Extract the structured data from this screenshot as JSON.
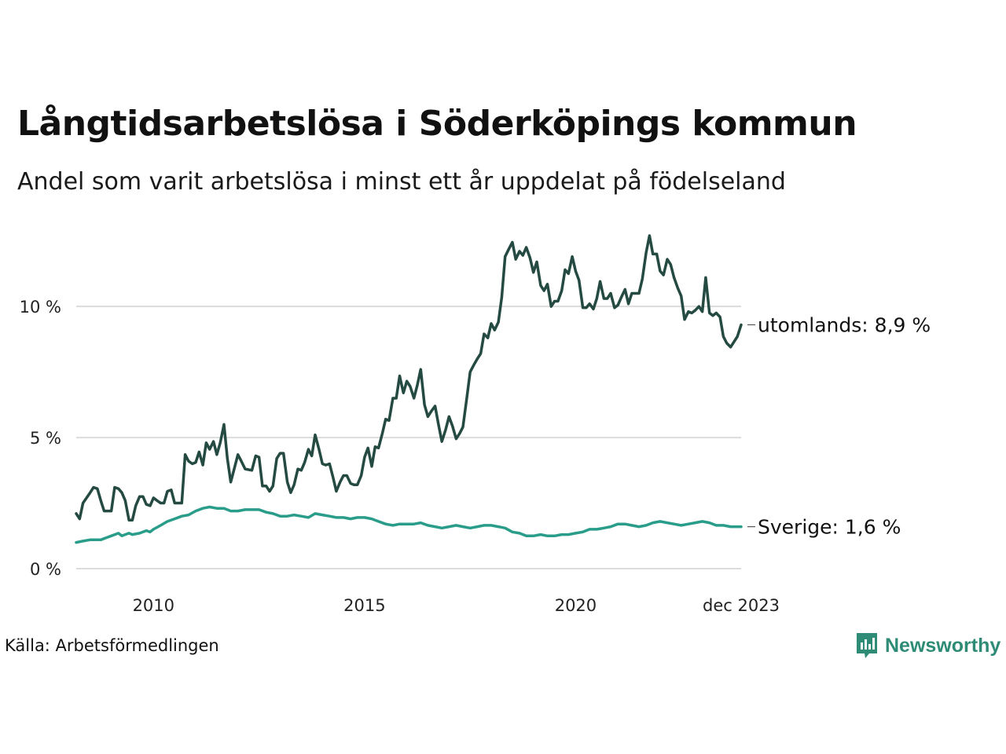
{
  "chart_data": {
    "type": "line",
    "title": "Långtidsarbetslösa i Söderköpings kommun",
    "subtitle": "Andel som varit arbetslösa i minst ett år uppdelat på födelseland",
    "xlabel": "",
    "ylabel": "",
    "x_range": [
      2008.17,
      2023.92
    ],
    "ylim": [
      0,
      13
    ],
    "y_ticks": [
      {
        "value": 0,
        "label": "0 %"
      },
      {
        "value": 5,
        "label": "5 %"
      },
      {
        "value": 10,
        "label": "10 %"
      }
    ],
    "x_ticks": [
      {
        "value": 2010,
        "label": "2010"
      },
      {
        "value": 2015,
        "label": "2015"
      },
      {
        "value": 2020,
        "label": "2020"
      },
      {
        "value": 2023.92,
        "label": "dec 2023"
      }
    ],
    "grid": true,
    "series": [
      {
        "name": "utomlands",
        "end_label": "utomlands: 8,9 %",
        "color": "#244a42",
        "points": [
          [
            2008.17,
            2.1
          ],
          [
            2008.25,
            1.9
          ],
          [
            2008.33,
            2.5
          ],
          [
            2008.5,
            2.9
          ],
          [
            2008.58,
            3.1
          ],
          [
            2008.67,
            3.05
          ],
          [
            2008.75,
            2.6
          ],
          [
            2008.83,
            2.2
          ],
          [
            2009.0,
            2.2
          ],
          [
            2009.08,
            3.1
          ],
          [
            2009.17,
            3.05
          ],
          [
            2009.25,
            2.9
          ],
          [
            2009.33,
            2.6
          ],
          [
            2009.42,
            1.85
          ],
          [
            2009.5,
            1.85
          ],
          [
            2009.58,
            2.4
          ],
          [
            2009.67,
            2.75
          ],
          [
            2009.75,
            2.75
          ],
          [
            2009.83,
            2.45
          ],
          [
            2009.92,
            2.4
          ],
          [
            2010.0,
            2.7
          ],
          [
            2010.08,
            2.6
          ],
          [
            2010.17,
            2.5
          ],
          [
            2010.25,
            2.5
          ],
          [
            2010.33,
            2.95
          ],
          [
            2010.42,
            3.0
          ],
          [
            2010.5,
            2.5
          ],
          [
            2010.67,
            2.5
          ],
          [
            2010.75,
            4.35
          ],
          [
            2010.83,
            4.1
          ],
          [
            2010.92,
            4.0
          ],
          [
            2011.0,
            4.05
          ],
          [
            2011.08,
            4.45
          ],
          [
            2011.17,
            3.95
          ],
          [
            2011.25,
            4.8
          ],
          [
            2011.33,
            4.55
          ],
          [
            2011.42,
            4.85
          ],
          [
            2011.5,
            4.35
          ],
          [
            2011.58,
            4.8
          ],
          [
            2011.67,
            5.5
          ],
          [
            2011.75,
            4.2
          ],
          [
            2011.83,
            3.3
          ],
          [
            2011.92,
            3.85
          ],
          [
            2012.0,
            4.35
          ],
          [
            2012.08,
            4.1
          ],
          [
            2012.17,
            3.8
          ],
          [
            2012.33,
            3.75
          ],
          [
            2012.42,
            4.3
          ],
          [
            2012.5,
            4.25
          ],
          [
            2012.58,
            3.15
          ],
          [
            2012.67,
            3.15
          ],
          [
            2012.75,
            2.95
          ],
          [
            2012.83,
            3.15
          ],
          [
            2012.92,
            4.2
          ],
          [
            2013.0,
            4.4
          ],
          [
            2013.08,
            4.4
          ],
          [
            2013.17,
            3.3
          ],
          [
            2013.25,
            2.9
          ],
          [
            2013.33,
            3.2
          ],
          [
            2013.42,
            3.8
          ],
          [
            2013.5,
            3.75
          ],
          [
            2013.58,
            4.05
          ],
          [
            2013.67,
            4.55
          ],
          [
            2013.75,
            4.3
          ],
          [
            2013.83,
            5.1
          ],
          [
            2013.92,
            4.55
          ],
          [
            2014.0,
            4.0
          ],
          [
            2014.08,
            3.95
          ],
          [
            2014.17,
            4.0
          ],
          [
            2014.25,
            3.5
          ],
          [
            2014.33,
            2.95
          ],
          [
            2014.42,
            3.3
          ],
          [
            2014.5,
            3.55
          ],
          [
            2014.58,
            3.55
          ],
          [
            2014.67,
            3.25
          ],
          [
            2014.75,
            3.2
          ],
          [
            2014.83,
            3.2
          ],
          [
            2014.92,
            3.55
          ],
          [
            2015.0,
            4.25
          ],
          [
            2015.08,
            4.6
          ],
          [
            2015.17,
            3.9
          ],
          [
            2015.25,
            4.65
          ],
          [
            2015.33,
            4.6
          ],
          [
            2015.42,
            5.15
          ],
          [
            2015.5,
            5.7
          ],
          [
            2015.58,
            5.65
          ],
          [
            2015.67,
            6.5
          ],
          [
            2015.75,
            6.5
          ],
          [
            2015.83,
            7.35
          ],
          [
            2015.92,
            6.7
          ],
          [
            2016.0,
            7.15
          ],
          [
            2016.08,
            6.95
          ],
          [
            2016.17,
            6.5
          ],
          [
            2016.25,
            7.0
          ],
          [
            2016.33,
            7.6
          ],
          [
            2016.42,
            6.25
          ],
          [
            2016.5,
            5.8
          ],
          [
            2016.58,
            6.0
          ],
          [
            2016.67,
            6.2
          ],
          [
            2016.75,
            5.5
          ],
          [
            2016.83,
            4.85
          ],
          [
            2016.92,
            5.3
          ],
          [
            2017.0,
            5.8
          ],
          [
            2017.08,
            5.45
          ],
          [
            2017.17,
            4.95
          ],
          [
            2017.25,
            5.15
          ],
          [
            2017.33,
            5.4
          ],
          [
            2017.42,
            6.5
          ],
          [
            2017.5,
            7.5
          ],
          [
            2017.58,
            7.75
          ],
          [
            2017.67,
            8.0
          ],
          [
            2017.75,
            8.2
          ],
          [
            2017.83,
            8.95
          ],
          [
            2017.92,
            8.8
          ],
          [
            2018.0,
            9.35
          ],
          [
            2018.08,
            9.1
          ],
          [
            2018.17,
            9.4
          ],
          [
            2018.25,
            10.35
          ],
          [
            2018.33,
            11.9
          ],
          [
            2018.42,
            12.2
          ],
          [
            2018.5,
            12.45
          ],
          [
            2018.58,
            11.8
          ],
          [
            2018.67,
            12.1
          ],
          [
            2018.75,
            11.95
          ],
          [
            2018.83,
            12.25
          ],
          [
            2018.92,
            11.85
          ],
          [
            2019.0,
            11.3
          ],
          [
            2019.08,
            11.7
          ],
          [
            2019.17,
            10.8
          ],
          [
            2019.25,
            10.6
          ],
          [
            2019.33,
            10.85
          ],
          [
            2019.42,
            10.0
          ],
          [
            2019.5,
            10.2
          ],
          [
            2019.58,
            10.2
          ],
          [
            2019.67,
            10.6
          ],
          [
            2019.75,
            11.4
          ],
          [
            2019.83,
            11.25
          ],
          [
            2019.92,
            11.9
          ],
          [
            2020.0,
            11.35
          ],
          [
            2020.08,
            11.0
          ],
          [
            2020.17,
            9.95
          ],
          [
            2020.25,
            9.95
          ],
          [
            2020.33,
            10.1
          ],
          [
            2020.42,
            9.9
          ],
          [
            2020.5,
            10.3
          ],
          [
            2020.58,
            10.95
          ],
          [
            2020.67,
            10.3
          ],
          [
            2020.75,
            10.3
          ],
          [
            2020.83,
            10.5
          ],
          [
            2020.92,
            9.95
          ],
          [
            2021.0,
            10.05
          ],
          [
            2021.08,
            10.35
          ],
          [
            2021.17,
            10.65
          ],
          [
            2021.25,
            10.1
          ],
          [
            2021.33,
            10.5
          ],
          [
            2021.42,
            10.5
          ],
          [
            2021.5,
            10.5
          ],
          [
            2021.58,
            11.05
          ],
          [
            2021.67,
            12.05
          ],
          [
            2021.75,
            12.7
          ],
          [
            2021.83,
            12.0
          ],
          [
            2021.92,
            12.0
          ],
          [
            2022.0,
            11.35
          ],
          [
            2022.08,
            11.2
          ],
          [
            2022.17,
            11.8
          ],
          [
            2022.25,
            11.6
          ],
          [
            2022.33,
            11.1
          ],
          [
            2022.42,
            10.7
          ],
          [
            2022.5,
            10.4
          ],
          [
            2022.58,
            9.5
          ],
          [
            2022.67,
            9.8
          ],
          [
            2022.75,
            9.75
          ],
          [
            2022.83,
            9.85
          ],
          [
            2022.92,
            10.0
          ],
          [
            2023.0,
            9.8
          ],
          [
            2023.08,
            11.1
          ],
          [
            2023.17,
            9.75
          ],
          [
            2023.25,
            9.65
          ],
          [
            2023.33,
            9.75
          ],
          [
            2023.42,
            9.6
          ],
          [
            2023.5,
            8.85
          ],
          [
            2023.58,
            8.6
          ],
          [
            2023.67,
            8.45
          ],
          [
            2023.75,
            8.65
          ],
          [
            2023.83,
            8.85
          ],
          [
            2023.92,
            9.3
          ],
          [
            2024.0,
            8.95
          ]
        ]
      },
      {
        "name": "Sverige",
        "end_label": "Sverige: 1,6 %",
        "color": "#2a9d8a",
        "points": [
          [
            2008.17,
            1.0
          ],
          [
            2008.33,
            1.05
          ],
          [
            2008.5,
            1.1
          ],
          [
            2008.75,
            1.1
          ],
          [
            2008.92,
            1.2
          ],
          [
            2009.0,
            1.25
          ],
          [
            2009.17,
            1.35
          ],
          [
            2009.25,
            1.25
          ],
          [
            2009.33,
            1.3
          ],
          [
            2009.42,
            1.35
          ],
          [
            2009.5,
            1.3
          ],
          [
            2009.67,
            1.35
          ],
          [
            2009.83,
            1.45
          ],
          [
            2009.92,
            1.4
          ],
          [
            2010.0,
            1.5
          ],
          [
            2010.17,
            1.65
          ],
          [
            2010.33,
            1.8
          ],
          [
            2010.5,
            1.9
          ],
          [
            2010.67,
            2.0
          ],
          [
            2010.83,
            2.05
          ],
          [
            2011.0,
            2.2
          ],
          [
            2011.17,
            2.3
          ],
          [
            2011.33,
            2.35
          ],
          [
            2011.5,
            2.3
          ],
          [
            2011.67,
            2.3
          ],
          [
            2011.83,
            2.2
          ],
          [
            2012.0,
            2.2
          ],
          [
            2012.17,
            2.25
          ],
          [
            2012.33,
            2.25
          ],
          [
            2012.5,
            2.25
          ],
          [
            2012.67,
            2.15
          ],
          [
            2012.83,
            2.1
          ],
          [
            2013.0,
            2.0
          ],
          [
            2013.17,
            2.0
          ],
          [
            2013.33,
            2.05
          ],
          [
            2013.5,
            2.0
          ],
          [
            2013.67,
            1.95
          ],
          [
            2013.83,
            2.1
          ],
          [
            2014.0,
            2.05
          ],
          [
            2014.17,
            2.0
          ],
          [
            2014.33,
            1.95
          ],
          [
            2014.5,
            1.95
          ],
          [
            2014.67,
            1.9
          ],
          [
            2014.83,
            1.95
          ],
          [
            2015.0,
            1.95
          ],
          [
            2015.17,
            1.9
          ],
          [
            2015.33,
            1.8
          ],
          [
            2015.5,
            1.7
          ],
          [
            2015.67,
            1.65
          ],
          [
            2015.83,
            1.7
          ],
          [
            2016.0,
            1.7
          ],
          [
            2016.17,
            1.7
          ],
          [
            2016.33,
            1.75
          ],
          [
            2016.5,
            1.65
          ],
          [
            2016.67,
            1.6
          ],
          [
            2016.83,
            1.55
          ],
          [
            2017.0,
            1.6
          ],
          [
            2017.17,
            1.65
          ],
          [
            2017.33,
            1.6
          ],
          [
            2017.5,
            1.55
          ],
          [
            2017.67,
            1.6
          ],
          [
            2017.83,
            1.65
          ],
          [
            2018.0,
            1.65
          ],
          [
            2018.17,
            1.6
          ],
          [
            2018.33,
            1.55
          ],
          [
            2018.5,
            1.4
          ],
          [
            2018.67,
            1.35
          ],
          [
            2018.83,
            1.25
          ],
          [
            2019.0,
            1.25
          ],
          [
            2019.17,
            1.3
          ],
          [
            2019.33,
            1.25
          ],
          [
            2019.5,
            1.25
          ],
          [
            2019.67,
            1.3
          ],
          [
            2019.83,
            1.3
          ],
          [
            2020.0,
            1.35
          ],
          [
            2020.17,
            1.4
          ],
          [
            2020.33,
            1.5
          ],
          [
            2020.5,
            1.5
          ],
          [
            2020.67,
            1.55
          ],
          [
            2020.83,
            1.6
          ],
          [
            2021.0,
            1.7
          ],
          [
            2021.17,
            1.7
          ],
          [
            2021.33,
            1.65
          ],
          [
            2021.5,
            1.6
          ],
          [
            2021.67,
            1.65
          ],
          [
            2021.83,
            1.75
          ],
          [
            2022.0,
            1.8
          ],
          [
            2022.17,
            1.75
          ],
          [
            2022.33,
            1.7
          ],
          [
            2022.5,
            1.65
          ],
          [
            2022.67,
            1.7
          ],
          [
            2022.83,
            1.75
          ],
          [
            2023.0,
            1.8
          ],
          [
            2023.17,
            1.75
          ],
          [
            2023.33,
            1.65
          ],
          [
            2023.5,
            1.65
          ],
          [
            2023.67,
            1.6
          ],
          [
            2023.83,
            1.6
          ],
          [
            2023.92,
            1.6
          ],
          [
            2024.0,
            1.6
          ]
        ]
      }
    ]
  },
  "source": "Källa: Arbetsförmedlingen",
  "brand": {
    "name": "Newsworthy",
    "color": "#2e8b76"
  }
}
